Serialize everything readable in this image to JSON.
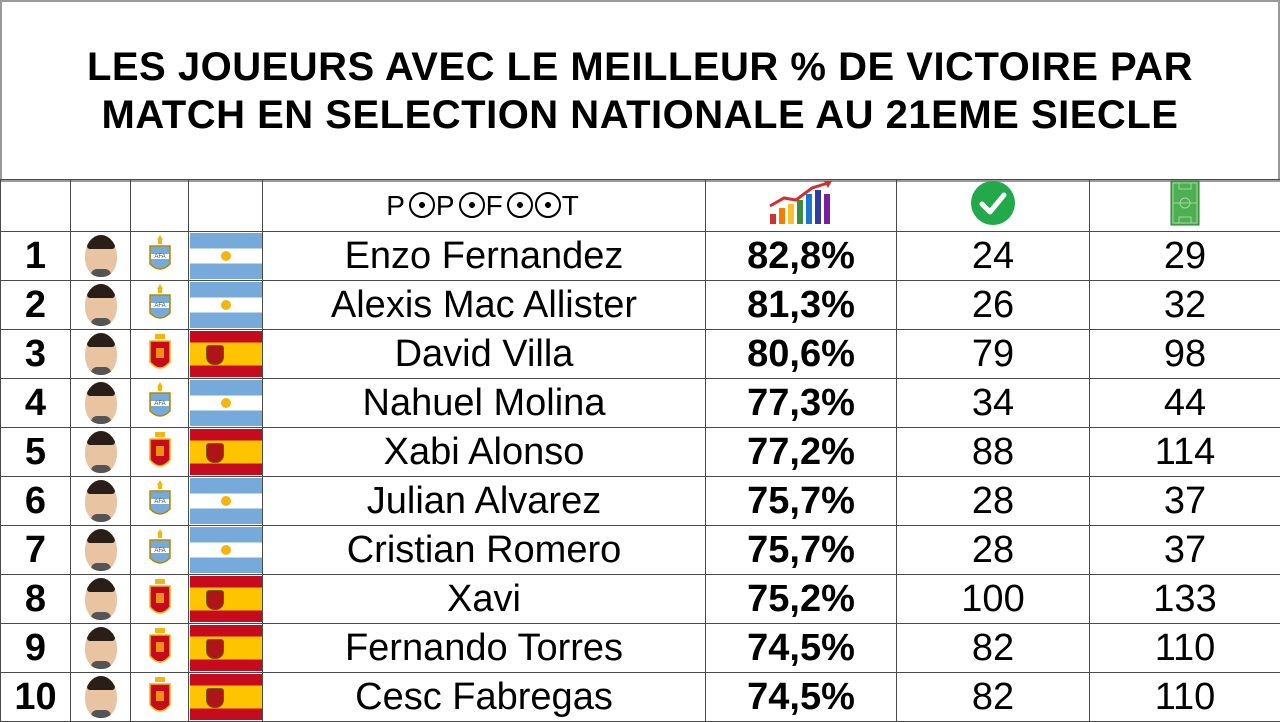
{
  "title": {
    "line1": "LES JOUEURS AVEC LE MEILLEUR % DE VICTOIRE PAR",
    "line2": "MATCH EN SELECTION NATIONALE AU 21EME SIECLE"
  },
  "header": {
    "logo_parts": [
      "P",
      "P",
      "F",
      "T"
    ],
    "icons": [
      "bar-chart-icon",
      "check-circle-icon",
      "football-pitch-icon"
    ]
  },
  "colors": {
    "check_green": "#22a94a",
    "pitch_green": "#4caf50",
    "argentina_blue": "#75aadb",
    "spain_red": "#c60b1e",
    "spain_yellow": "#ffc400"
  },
  "rows": [
    {
      "rank": "1",
      "name": "Enzo Fernandez",
      "pct": "82,8%",
      "wins": "24",
      "matches": "29",
      "country": "argentina"
    },
    {
      "rank": "2",
      "name": "Alexis Mac Allister",
      "pct": "81,3%",
      "wins": "26",
      "matches": "32",
      "country": "argentina"
    },
    {
      "rank": "3",
      "name": "David Villa",
      "pct": "80,6%",
      "wins": "79",
      "matches": "98",
      "country": "spain"
    },
    {
      "rank": "4",
      "name": "Nahuel Molina",
      "pct": "77,3%",
      "wins": "34",
      "matches": "44",
      "country": "argentina"
    },
    {
      "rank": "5",
      "name": "Xabi Alonso",
      "pct": "77,2%",
      "wins": "88",
      "matches": "114",
      "country": "spain"
    },
    {
      "rank": "6",
      "name": "Julian Alvarez",
      "pct": "75,7%",
      "wins": "28",
      "matches": "37",
      "country": "argentina"
    },
    {
      "rank": "7",
      "name": "Cristian Romero",
      "pct": "75,7%",
      "wins": "28",
      "matches": "37",
      "country": "argentina"
    },
    {
      "rank": "8",
      "name": "Xavi",
      "pct": "75,2%",
      "wins": "100",
      "matches": "133",
      "country": "spain"
    },
    {
      "rank": "9",
      "name": "Fernando Torres",
      "pct": "74,5%",
      "wins": "82",
      "matches": "110",
      "country": "spain"
    },
    {
      "rank": "10",
      "name": "Cesc Fabregas",
      "pct": "74,5%",
      "wins": "82",
      "matches": "110",
      "country": "spain"
    }
  ]
}
